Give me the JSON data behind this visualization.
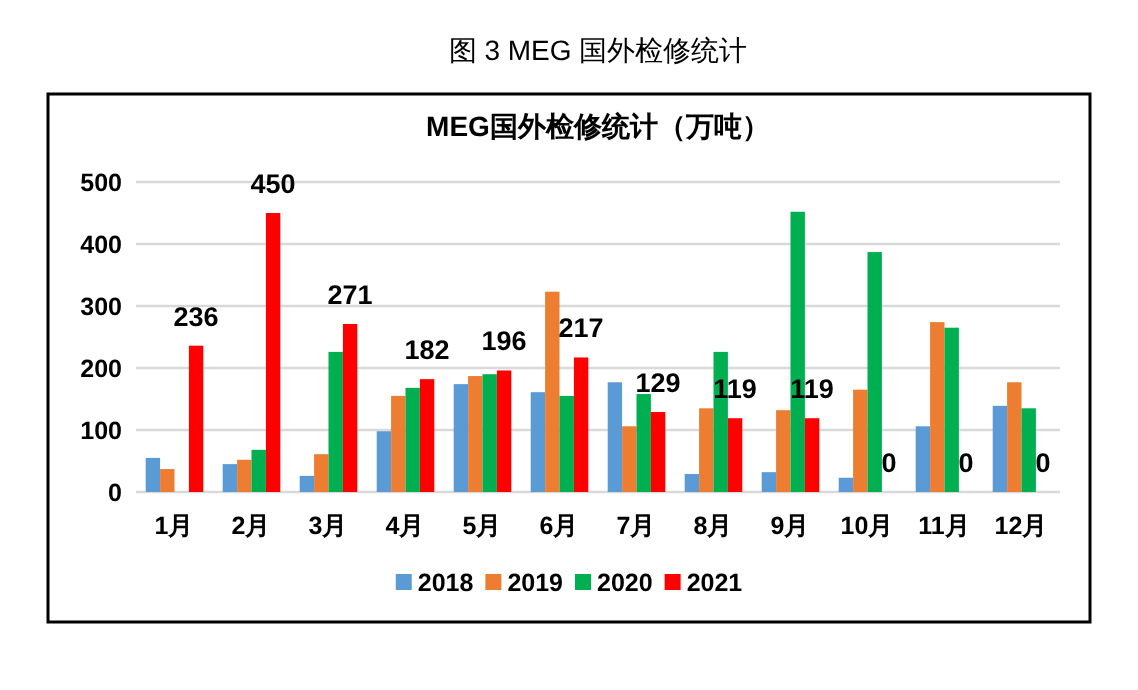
{
  "chart_data": {
    "type": "bar",
    "title": "图 3 MEG 国外检修统计",
    "subtitle": "MEG国外检修统计（万吨）",
    "categories": [
      "1月",
      "2月",
      "3月",
      "4月",
      "5月",
      "6月",
      "7月",
      "8月",
      "9月",
      "10月",
      "11月",
      "12月"
    ],
    "series": [
      {
        "name": "2018",
        "color": "#5b9bd5",
        "values": [
          55,
          45,
          26,
          98,
          174,
          161,
          177,
          29,
          32,
          23,
          106,
          139
        ]
      },
      {
        "name": "2019",
        "color": "#ed7d31",
        "values": [
          37,
          52,
          61,
          155,
          187,
          323,
          106,
          135,
          132,
          165,
          274,
          177
        ]
      },
      {
        "name": "2020",
        "color": "#00b050",
        "values": [
          0,
          68,
          226,
          168,
          190,
          155,
          158,
          226,
          452,
          387,
          265,
          135
        ]
      },
      {
        "name": "2021",
        "color": "#ff0000",
        "values": [
          236,
          450,
          271,
          182,
          196,
          217,
          129,
          119,
          119,
          0,
          0,
          0
        ],
        "value_labels": [
          "236",
          "450",
          "271",
          "182",
          "196",
          "217",
          "129",
          "119",
          "119",
          "0",
          "0",
          "0"
        ]
      }
    ],
    "ylim": [
      0,
      500
    ],
    "yticks": [
      0,
      100,
      200,
      300,
      400,
      500
    ],
    "grid": "y",
    "legend": "bottom"
  }
}
